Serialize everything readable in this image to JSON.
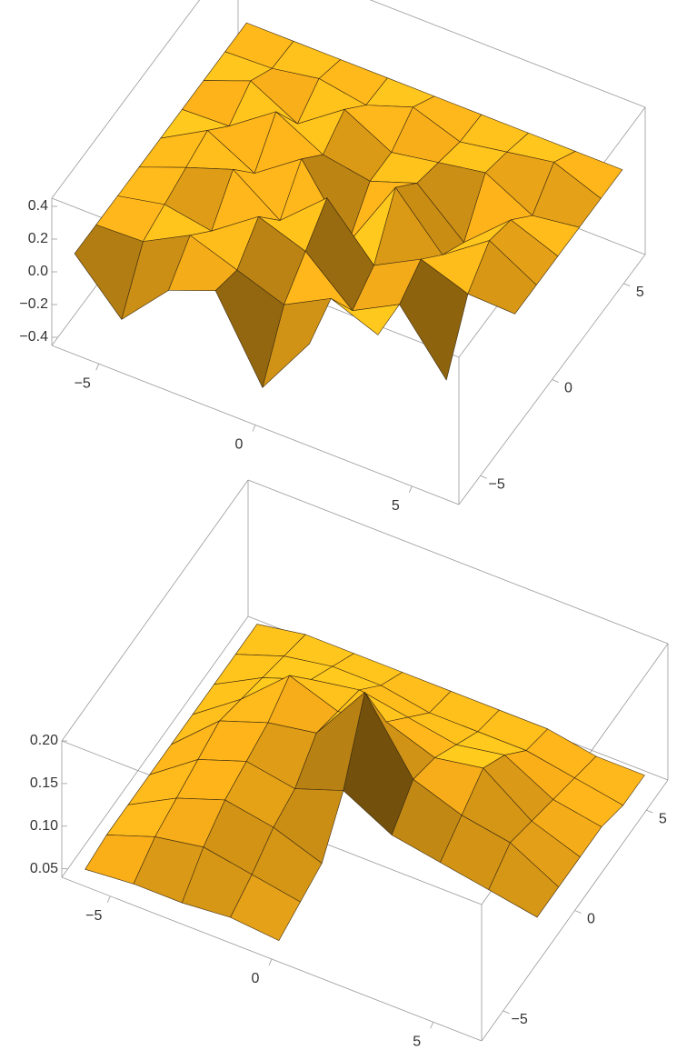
{
  "chart_data": [
    {
      "type": "surface3d",
      "color": "#ffb31a",
      "xlim": [
        -6.5,
        6.5
      ],
      "ylim": [
        -6.5,
        6.5
      ],
      "zlim": [
        -0.45,
        0.45
      ],
      "xticks": [
        {
          "value": -5,
          "label": "−5"
        },
        0,
        5
      ],
      "yticks": [
        {
          "value": -5,
          "label": "−5"
        },
        0,
        5
      ],
      "zticks": [
        {
          "value": -0.4,
          "label": "−0.4"
        },
        {
          "value": -0.2,
          "label": "−0.2"
        },
        {
          "value": 0,
          "label": "0.0"
        },
        0.2,
        0.4
      ],
      "x": [
        -6,
        -4.5,
        -3,
        -1.5,
        0,
        1.5,
        3,
        4.5,
        6
      ],
      "y": [
        -6,
        -4.5,
        -3,
        -1.5,
        0,
        1.5,
        3,
        4.5,
        6
      ],
      "z": [
        [
          0.09,
          -0.2,
          0.09,
          0.2,
          -0.28,
          0.1,
          null,
          null,
          null
        ],
        [
          0.09,
          0.1,
          0.25,
          0.15,
          0.05,
          0.2,
          0.09,
          null,
          null
        ],
        [
          0.09,
          0.15,
          0.1,
          0.3,
          0.2,
          -0.05,
          0.1,
          -0.25,
          null
        ],
        [
          0.09,
          0.2,
          0.3,
          0.1,
          0.35,
          0.05,
          0.2,
          0.1,
          0.09
        ],
        [
          0.09,
          0.25,
          0.1,
          0.3,
          -0.1,
          0.35,
          0.05,
          0.25,
          0.09
        ],
        [
          0.09,
          0.1,
          0.3,
          0.15,
          0.1,
          0.2,
          -0.05,
          0.2,
          0.09
        ],
        [
          0.09,
          0.2,
          0.05,
          0.25,
          0.1,
          0.15,
          0.2,
          0.05,
          0.09
        ],
        [
          0.09,
          0.1,
          0.15,
          0.1,
          0.2,
          0.1,
          0.15,
          0.2,
          0.09
        ],
        [
          0.09,
          0.09,
          0.09,
          0.09,
          0.09,
          0.09,
          0.09,
          0.09,
          0.09
        ]
      ]
    },
    {
      "type": "surface3d",
      "color": "#ffb31a",
      "xlim": [
        -6.5,
        6.5
      ],
      "ylim": [
        -6.5,
        6.5
      ],
      "zlim": [
        0.04,
        0.2
      ],
      "xticks": [
        {
          "value": -5,
          "label": "−5"
        },
        0,
        5
      ],
      "yticks": [
        {
          "value": -5,
          "label": "−5"
        },
        0,
        5
      ],
      "zticks": [
        0.05,
        {
          "value": 0.1,
          "label": "0.10"
        },
        0.15,
        {
          "value": 0.2,
          "label": "0.20"
        }
      ],
      "x": [
        -6,
        -4.5,
        -3,
        -1.5,
        0,
        1.5,
        3,
        4.5,
        6
      ],
      "y": [
        -6,
        -4.5,
        -3,
        -1.5,
        0,
        1.5,
        3,
        4.5,
        6
      ],
      "z": [
        [
          0.045,
          0.05,
          0.05,
          0.055,
          0.05,
          null,
          null,
          null,
          null
        ],
        [
          0.05,
          0.07,
          0.08,
          0.07,
          0.06,
          null,
          null,
          null,
          null
        ],
        [
          0.05,
          0.08,
          0.1,
          0.09,
          0.07,
          null,
          null,
          null,
          null
        ],
        [
          0.05,
          0.09,
          0.11,
          0.1,
          0.12,
          0.09,
          0.08,
          0.07,
          0.06
        ],
        [
          0.05,
          0.1,
          0.12,
          0.13,
          0.2,
          0.12,
          0.1,
          0.09,
          0.06
        ],
        [
          0.05,
          0.09,
          0.14,
          0.12,
          0.13,
          0.11,
          0.12,
          0.08,
          0.06
        ],
        [
          0.05,
          0.08,
          0.1,
          0.11,
          0.1,
          0.09,
          0.1,
          0.07,
          0.06
        ],
        [
          0.05,
          0.07,
          0.08,
          0.08,
          0.07,
          0.07,
          0.07,
          0.06,
          0.05
        ],
        [
          0.05,
          0.06,
          0.06,
          0.06,
          0.06,
          0.06,
          0.06,
          0.05,
          0.05
        ]
      ]
    }
  ]
}
